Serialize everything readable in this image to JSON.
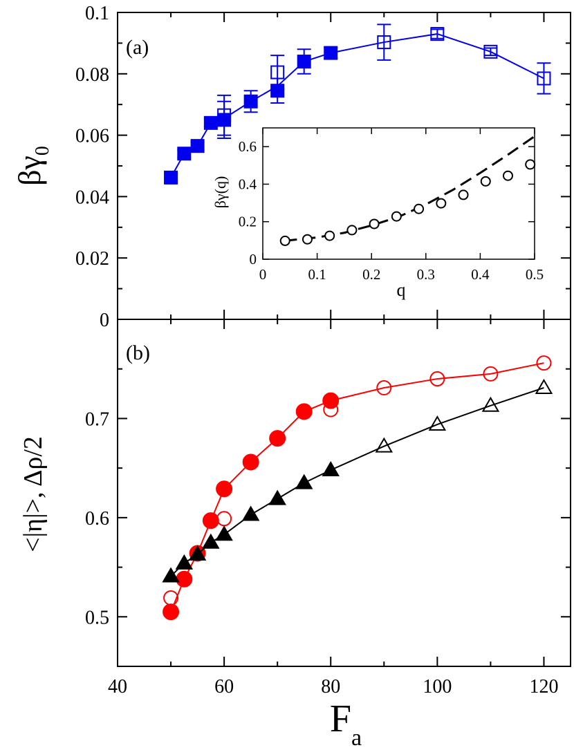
{
  "colors": {
    "blue": "#0000ee",
    "red": "#ff0000",
    "black": "#000000"
  },
  "chart_data": [
    {
      "panel": "(a)",
      "type": "line",
      "xlabel": "",
      "ylabel_main": "βγ",
      "ylabel_sub": "0",
      "xlim": [
        40,
        125
      ],
      "ylim": [
        0,
        0.1
      ],
      "x_ticks": [
        40,
        60,
        80,
        100,
        120
      ],
      "y_ticks": [
        0,
        0.02,
        0.04,
        0.06,
        0.08,
        0.1
      ],
      "y_tick_labels": [
        "0",
        "0.02",
        "0.04",
        "0.06",
        "0.08",
        "0.1"
      ],
      "series": [
        {
          "color": "blue",
          "marker": "square",
          "connected": true,
          "points": [
            {
              "x": 50,
              "y": 0.0462,
              "err": 0.0018,
              "filled": true
            },
            {
              "x": 52.5,
              "y": 0.054,
              "err": 0.0012,
              "filled": true
            },
            {
              "x": 55,
              "y": 0.0565,
              "err": 0.0012,
              "filled": true
            },
            {
              "x": 57.5,
              "y": 0.064,
              "err": 0.0012,
              "filled": true
            },
            {
              "x": 60,
              "y": 0.065,
              "err": 0.006,
              "filled": true
            },
            {
              "x": 60,
              "y": 0.0665,
              "err": 0.0065,
              "filled": false
            },
            {
              "x": 65,
              "y": 0.071,
              "err": 0.0035,
              "filled": true
            },
            {
              "x": 70,
              "y": 0.0745,
              "err": 0.004,
              "filled": true
            },
            {
              "x": 70,
              "y": 0.0805,
              "err": 0.0055,
              "filled": false
            },
            {
              "x": 75,
              "y": 0.084,
              "err": 0.004,
              "filled": true
            },
            {
              "x": 80,
              "y": 0.0868,
              "err": 0.0018,
              "filled": true
            },
            {
              "x": 90,
              "y": 0.0903,
              "err": 0.0058,
              "filled": false
            },
            {
              "x": 100,
              "y": 0.093,
              "err": 0.0015,
              "filled": false
            },
            {
              "x": 110,
              "y": 0.0872,
              "err": 0.0012,
              "filled": false
            },
            {
              "x": 120,
              "y": 0.0785,
              "err": 0.005,
              "filled": false
            }
          ],
          "line_x": [
            50,
            52.5,
            55,
            57.5,
            60,
            65,
            70,
            75,
            80,
            90,
            100,
            110,
            120
          ],
          "line_y": [
            0.0462,
            0.054,
            0.0565,
            0.064,
            0.0655,
            0.071,
            0.076,
            0.084,
            0.0868,
            0.0903,
            0.093,
            0.0872,
            0.0785
          ]
        }
      ],
      "inset": {
        "type": "scatter",
        "xlabel": "q",
        "ylabel": "βγ(q)",
        "xlim": [
          0,
          0.5
        ],
        "ylim": [
          0,
          0.7
        ],
        "x_ticks": [
          0,
          0.1,
          0.2,
          0.3,
          0.4,
          0.5
        ],
        "x_tick_labels": [
          "0",
          "0.1",
          "0.2",
          "0.3",
          "0.4",
          "0.5"
        ],
        "y_ticks": [
          0,
          0.2,
          0.4,
          0.6
        ],
        "y_tick_labels": [
          "0",
          "0.2",
          "0.4",
          "0.6"
        ],
        "points": {
          "x": [
            0.041,
            0.082,
            0.123,
            0.164,
            0.205,
            0.246,
            0.287,
            0.328,
            0.369,
            0.41,
            0.451,
            0.492
          ],
          "y": [
            0.098,
            0.106,
            0.125,
            0.155,
            0.188,
            0.228,
            0.268,
            0.298,
            0.343,
            0.415,
            0.445,
            0.505
          ]
        },
        "fit_curve": {
          "style": "dashed",
          "x": [
            0.04,
            0.1,
            0.15,
            0.2,
            0.25,
            0.3,
            0.35,
            0.4,
            0.45,
            0.5
          ],
          "y": [
            0.098,
            0.116,
            0.141,
            0.18,
            0.226,
            0.292,
            0.37,
            0.46,
            0.555,
            0.655
          ]
        }
      }
    },
    {
      "panel": "(b)",
      "type": "line",
      "xlabel_main": "F",
      "xlabel_sub": "a",
      "ylabel": "<|η|>, Δρ/2",
      "xlim": [
        40,
        125
      ],
      "ylim": [
        0.45,
        0.8
      ],
      "x_ticks": [
        40,
        60,
        80,
        100,
        120
      ],
      "x_tick_labels": [
        "40",
        "60",
        "80",
        "100",
        "120"
      ],
      "y_ticks": [
        0.5,
        0.6,
        0.7
      ],
      "y_tick_labels": [
        "0.5",
        "0.6",
        "0.7"
      ],
      "series": [
        {
          "color": "red",
          "marker": "circle",
          "points": [
            {
              "x": 50,
              "y": 0.505,
              "filled": true
            },
            {
              "x": 50,
              "y": 0.519,
              "filled": false
            },
            {
              "x": 52.5,
              "y": 0.538,
              "filled": true
            },
            {
              "x": 55,
              "y": 0.564,
              "filled": true
            },
            {
              "x": 57.5,
              "y": 0.597,
              "filled": true
            },
            {
              "x": 60,
              "y": 0.599,
              "filled": false
            },
            {
              "x": 60,
              "y": 0.629,
              "filled": true
            },
            {
              "x": 65,
              "y": 0.656,
              "filled": true
            },
            {
              "x": 70,
              "y": 0.68,
              "filled": true
            },
            {
              "x": 75,
              "y": 0.707,
              "filled": true
            },
            {
              "x": 80,
              "y": 0.709,
              "filled": false
            },
            {
              "x": 80,
              "y": 0.718,
              "filled": true
            },
            {
              "x": 90,
              "y": 0.731,
              "filled": false
            },
            {
              "x": 100,
              "y": 0.74,
              "filled": false
            },
            {
              "x": 110,
              "y": 0.745,
              "filled": false
            },
            {
              "x": 120,
              "y": 0.756,
              "filled": false
            }
          ],
          "line_x": [
            50,
            52.5,
            55,
            57.5,
            60,
            65,
            70,
            75,
            80,
            90,
            100,
            110,
            120
          ],
          "line_y": [
            0.505,
            0.538,
            0.564,
            0.597,
            0.629,
            0.656,
            0.68,
            0.707,
            0.718,
            0.731,
            0.74,
            0.745,
            0.756
          ]
        },
        {
          "color": "black",
          "marker": "triangle",
          "points": [
            {
              "x": 50,
              "y": 0.541,
              "filled": true
            },
            {
              "x": 52.5,
              "y": 0.554,
              "filled": true
            },
            {
              "x": 55,
              "y": 0.563,
              "filled": true
            },
            {
              "x": 57.5,
              "y": 0.575,
              "filled": true
            },
            {
              "x": 60,
              "y": 0.583,
              "filled": true
            },
            {
              "x": 65,
              "y": 0.603,
              "filled": true
            },
            {
              "x": 70,
              "y": 0.619,
              "filled": true
            },
            {
              "x": 75,
              "y": 0.635,
              "filled": true
            },
            {
              "x": 80,
              "y": 0.648,
              "filled": true
            },
            {
              "x": 90,
              "y": 0.672,
              "filled": false
            },
            {
              "x": 100,
              "y": 0.694,
              "filled": false
            },
            {
              "x": 110,
              "y": 0.713,
              "filled": false
            },
            {
              "x": 120,
              "y": 0.731,
              "filled": false
            }
          ],
          "line_x": [
            50,
            52.5,
            55,
            57.5,
            60,
            65,
            70,
            75,
            80,
            90,
            100,
            110,
            120
          ],
          "line_y": [
            0.541,
            0.554,
            0.563,
            0.575,
            0.583,
            0.603,
            0.619,
            0.635,
            0.648,
            0.672,
            0.694,
            0.713,
            0.731
          ]
        }
      ]
    }
  ]
}
